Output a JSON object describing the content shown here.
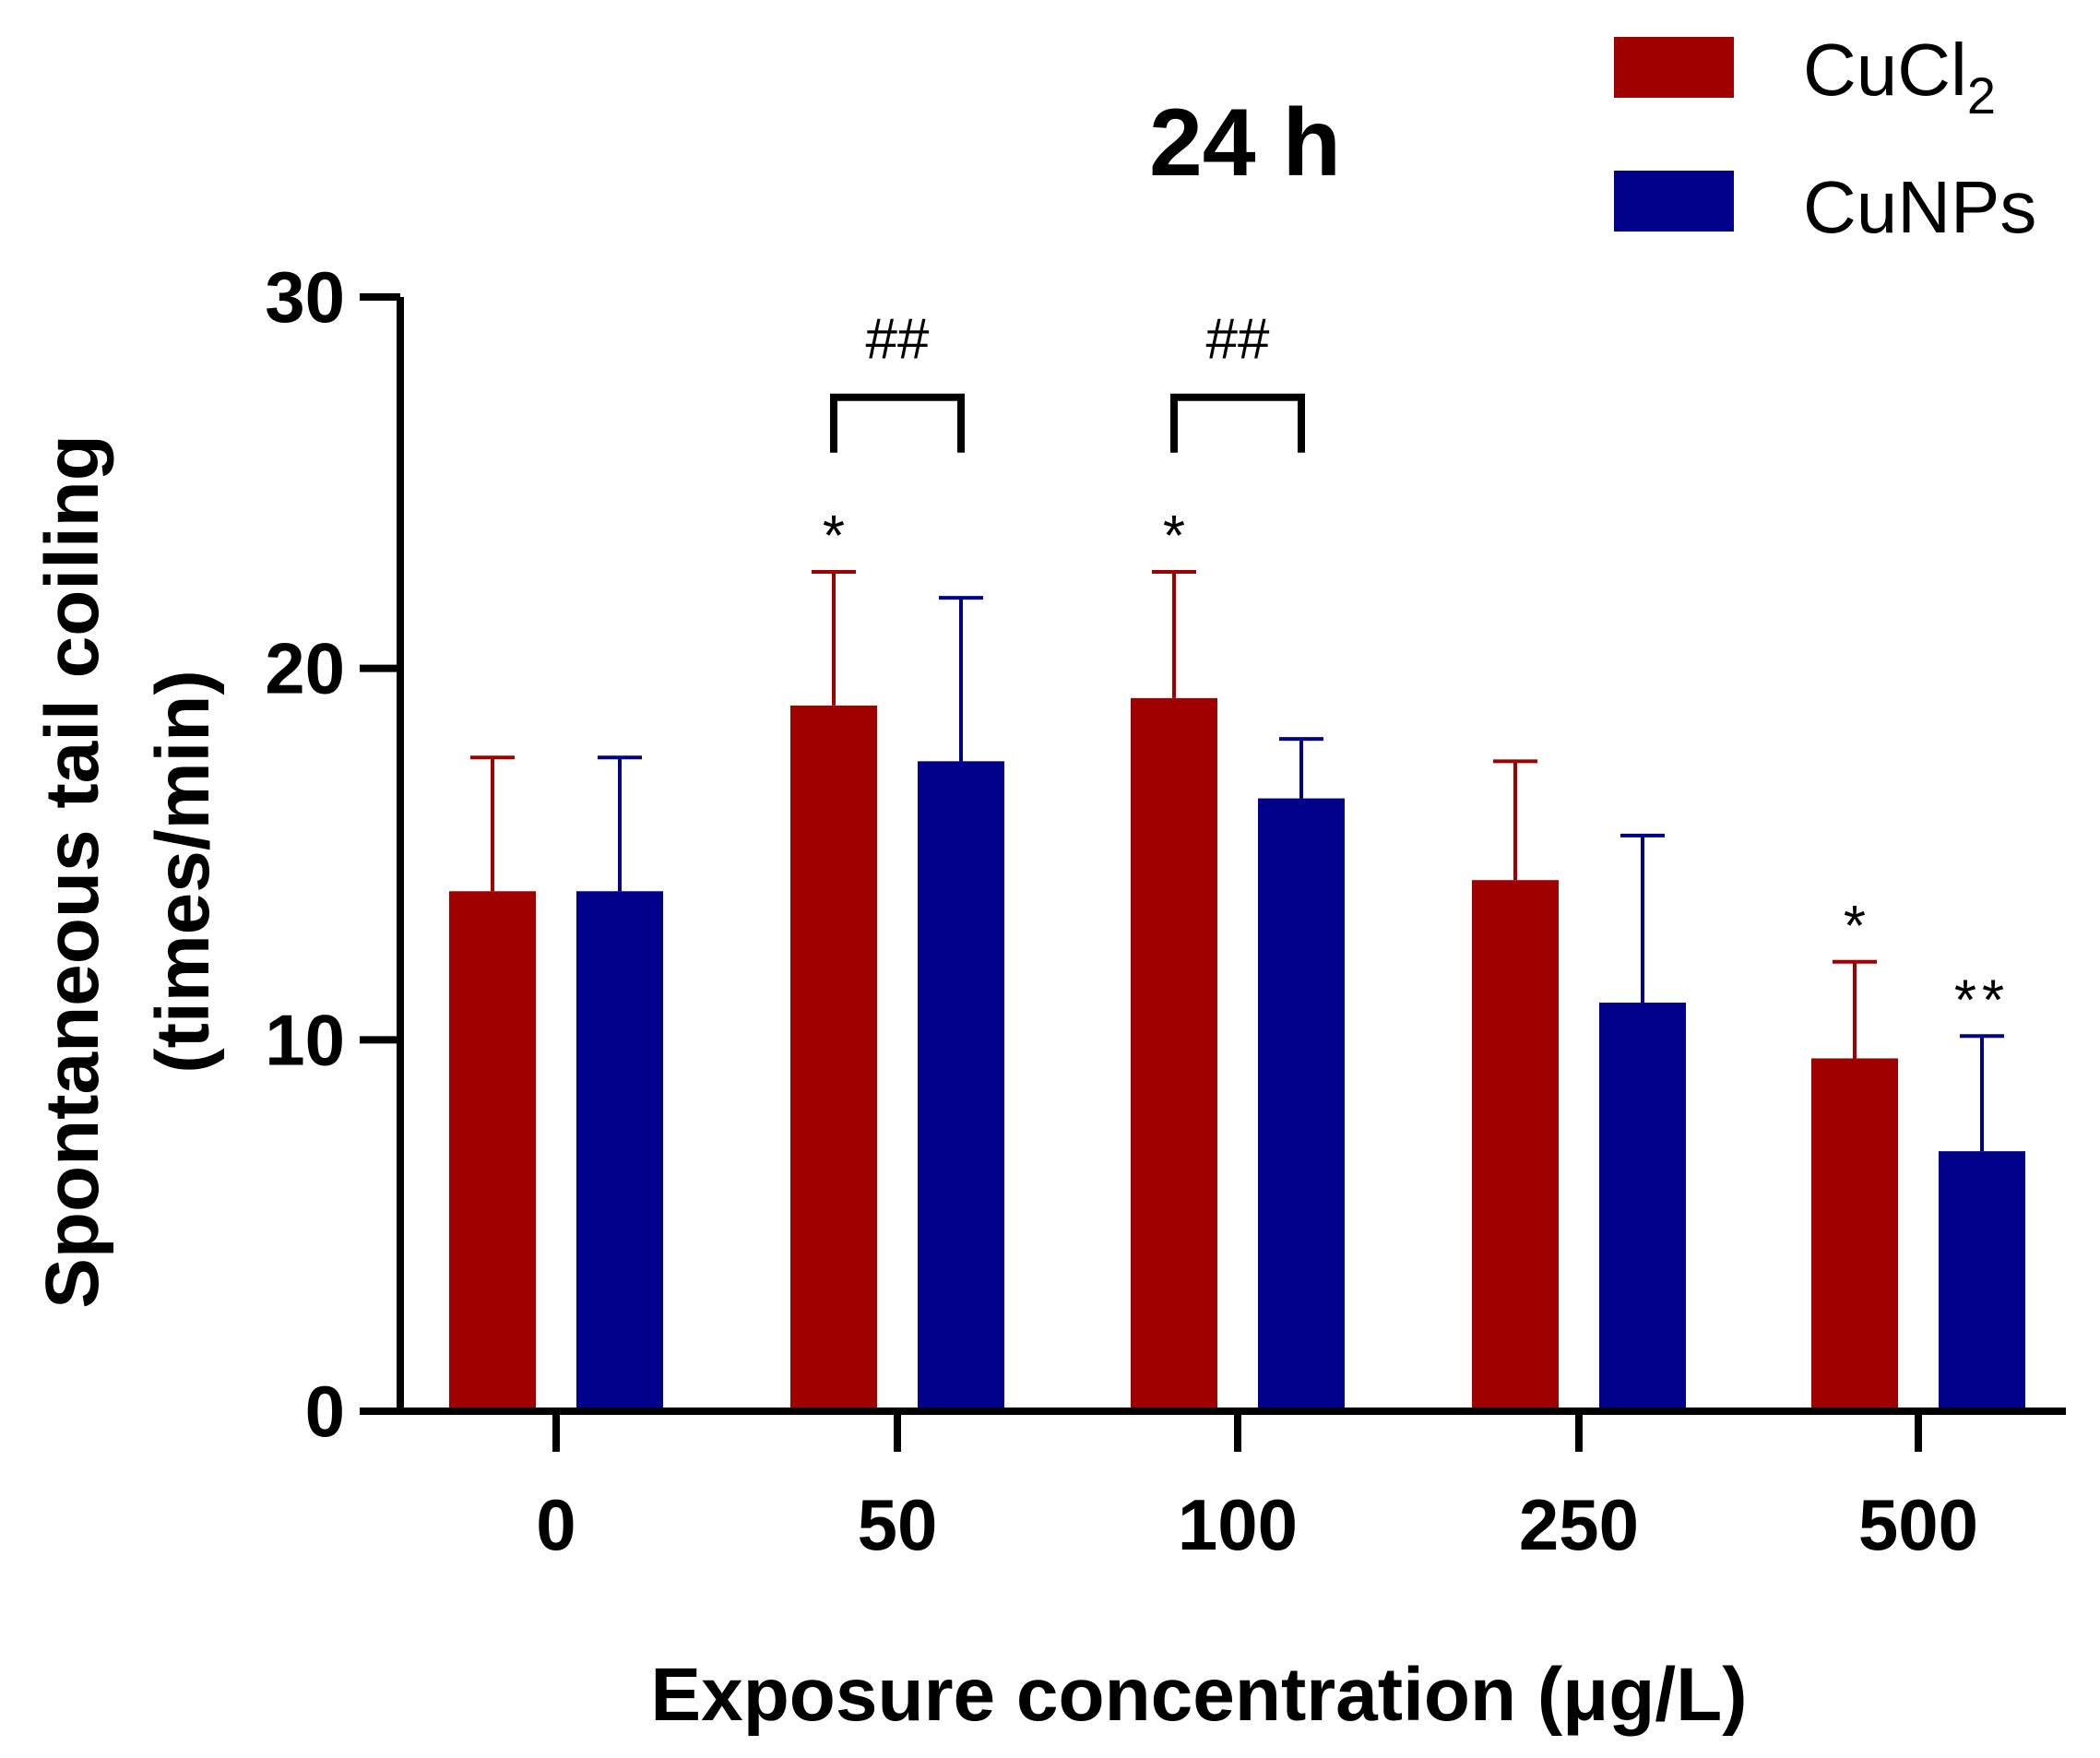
{
  "chart_data": {
    "type": "bar",
    "title": "24 h",
    "xlabel": "Exposure concentration (μg/L)",
    "ylabel_line1": "Spontaneous tail coiling",
    "ylabel_line2": "(times/min)",
    "ylim": [
      0,
      30
    ],
    "yticks": [
      0,
      10,
      20,
      30
    ],
    "ytick_labels": [
      "0",
      "10",
      "20",
      "30"
    ],
    "categories": [
      "0",
      "50",
      "100",
      "250",
      "500"
    ],
    "series": [
      {
        "name": "CuCl",
        "name_subscript": "2",
        "color": "#a00000",
        "values": [
          14.0,
          19.0,
          19.2,
          14.3,
          9.5
        ],
        "errors": [
          3.6,
          3.6,
          3.4,
          3.2,
          2.6
        ],
        "significance": [
          "",
          "*",
          "*",
          "",
          "*"
        ]
      },
      {
        "name": "CuNPs",
        "name_subscript": "",
        "color": "#00008b",
        "values": [
          14.0,
          17.5,
          16.5,
          11.0,
          7.0
        ],
        "errors": [
          3.6,
          4.4,
          1.6,
          4.5,
          3.1
        ],
        "significance": [
          "",
          "",
          "",
          "",
          "**"
        ]
      }
    ],
    "comparisons": [
      {
        "category_index": 1,
        "label": "##",
        "bracket_y": 27.3
      },
      {
        "category_index": 2,
        "label": "##",
        "bracket_y": 27.3
      }
    ],
    "legend_position": "top-right"
  }
}
